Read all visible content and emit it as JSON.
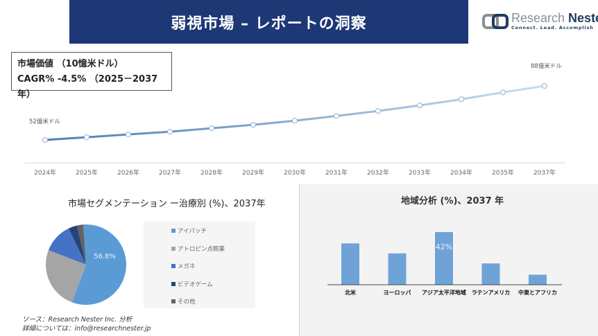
{
  "header": {
    "title": "弱視市場 – レポートの洞察"
  },
  "logo": {
    "name_light": "Research ",
    "name_bold": "Nester",
    "tagline": "Connect. Lead. Accomplish"
  },
  "infobox": {
    "line1": "市場価値 （10憶米ドル）",
    "line2": "CAGR% -4.5% （2025－2037年）"
  },
  "colors": {
    "banner": "#1e3876",
    "line": "#5a86b8",
    "bar": "#6fa3d8",
    "pie": [
      "#5b9bd5",
      "#a5a5a5",
      "#4472c4",
      "#264478",
      "#636363"
    ]
  },
  "chart_data": [
    {
      "type": "line",
      "categories": [
        "2024年",
        "2025年",
        "2026年",
        "2027年",
        "2028年",
        "2029年",
        "2030年",
        "2031年",
        "2032年",
        "2033年",
        "2034年",
        "2035年",
        "2037年"
      ],
      "values": [
        52,
        53.8,
        55.7,
        57.5,
        59.8,
        62.1,
        64.8,
        68,
        71.3,
        75,
        79.1,
        83.7,
        88
      ],
      "data_labels": {
        "first": "52億米ドル",
        "last": "88億米ドル"
      },
      "grid": false
    },
    {
      "type": "pie",
      "title": "市場セグメンテーション ー治療別 (%)、2037年",
      "categories": [
        "アイパッチ",
        "アトロピン点眼薬",
        "メガネ",
        "ビデオゲーム",
        "その他"
      ],
      "values": [
        56.8,
        25.2,
        12,
        3.5,
        2.5
      ],
      "data_label": "56.8%",
      "legend": "right"
    },
    {
      "type": "bar",
      "title": "地域分析 (%)、2037 年",
      "categories": [
        "北米",
        "ヨーロッパ",
        "アジア太平洋地域",
        "ラテンアメリカ",
        "中東とアフリカ"
      ],
      "values": [
        33,
        25,
        42,
        17,
        8
      ],
      "data_label": "42%"
    }
  ],
  "source": {
    "line1": "ソース：Research Nester Inc. 分析",
    "line2": "詳細については：info@researchnester.jp"
  }
}
